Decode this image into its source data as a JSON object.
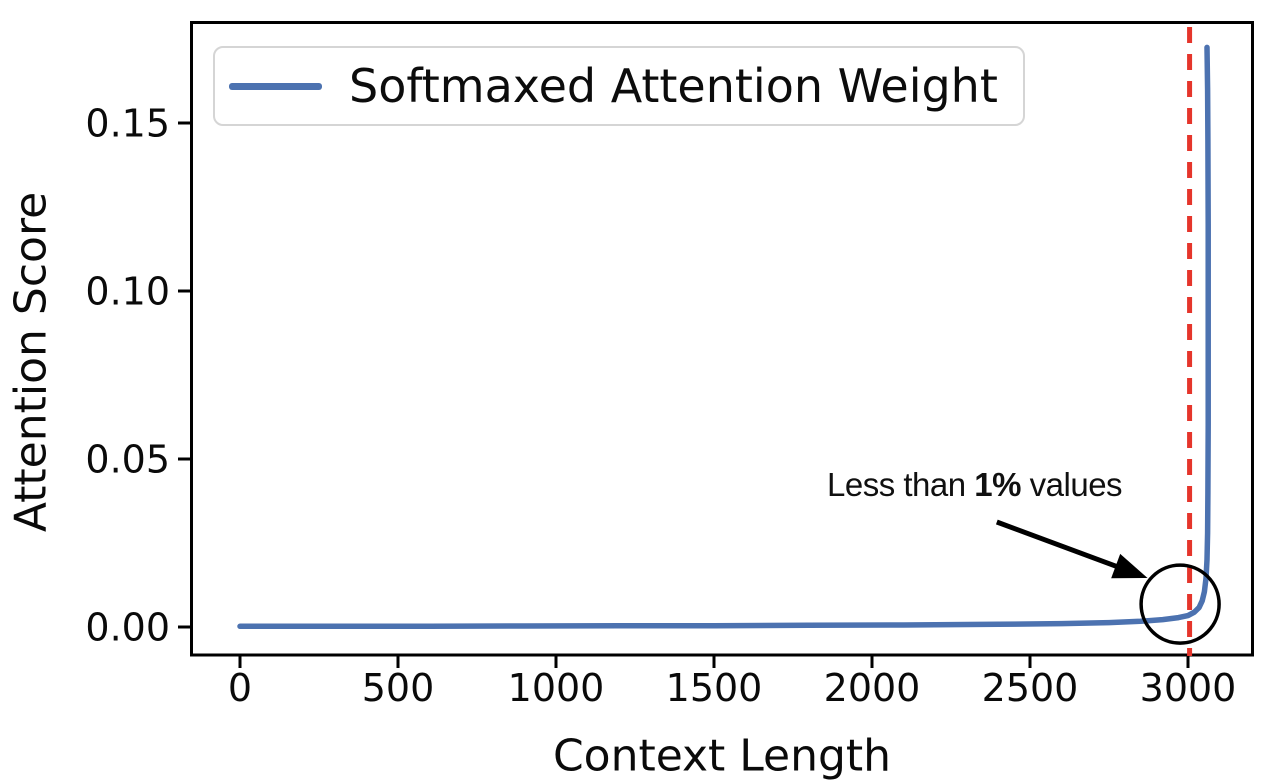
{
  "figure": {
    "background": "#ffffff",
    "xlabel": "Context Length",
    "ylabel": "Attention Score",
    "legend": {
      "label": "Softmaxed Attention Weight",
      "line_color": "#4C72B0"
    },
    "annotation": {
      "before": "Less than ",
      "bold": "1%",
      "after": " values"
    }
  },
  "chart_data": {
    "type": "line",
    "title": "",
    "xlabel": "Context Length",
    "ylabel": "Attention Score",
    "xlim": [
      -160,
      3205
    ],
    "ylim": [
      -0.008,
      0.18
    ],
    "grid": false,
    "legend_position": "upper left",
    "x_ticks": [
      0,
      500,
      1000,
      1500,
      2000,
      2500,
      3000
    ],
    "x_tick_labels": [
      "0",
      "500",
      "1000",
      "1500",
      "2000",
      "2500",
      "3000"
    ],
    "y_ticks": [
      0.0,
      0.05,
      0.1,
      0.15
    ],
    "y_tick_labels": [
      "0.00",
      "0.05",
      "0.10",
      "0.15"
    ],
    "series": [
      {
        "name": "Softmaxed Attention Weight",
        "color": "#4C72B0",
        "points": [
          [
            0,
            0.0002
          ],
          [
            300,
            0.0002
          ],
          [
            600,
            0.00025
          ],
          [
            900,
            0.0003
          ],
          [
            1200,
            0.00035
          ],
          [
            1500,
            0.0004
          ],
          [
            1800,
            0.0005
          ],
          [
            2100,
            0.0006
          ],
          [
            2400,
            0.0008
          ],
          [
            2600,
            0.001
          ],
          [
            2750,
            0.0013
          ],
          [
            2850,
            0.0017
          ],
          [
            2920,
            0.0022
          ],
          [
            2970,
            0.0028
          ],
          [
            3000,
            0.0034
          ],
          [
            3020,
            0.0044
          ],
          [
            3035,
            0.0058
          ],
          [
            3045,
            0.0078
          ],
          [
            3052,
            0.0105
          ],
          [
            3057,
            0.0145
          ],
          [
            3060,
            0.02
          ],
          [
            3062,
            0.028
          ],
          [
            3063,
            0.04
          ],
          [
            3064,
            0.06
          ],
          [
            3064,
            0.09
          ],
          [
            3064,
            0.12
          ],
          [
            3063,
            0.145
          ],
          [
            3062,
            0.16
          ],
          [
            3060,
            0.1725
          ]
        ]
      }
    ],
    "vline": {
      "x": 3005,
      "color": "#E5352B",
      "style": "dashed"
    },
    "annotations": [
      {
        "text": "Less than 1% values",
        "ellipse": {
          "center_x": 2975,
          "center_y": 0.0068,
          "radius_px": 39
        },
        "arrow": {
          "from": [
            2395,
            0.03125
          ],
          "to": [
            2872,
            0.0146
          ]
        }
      }
    ]
  }
}
